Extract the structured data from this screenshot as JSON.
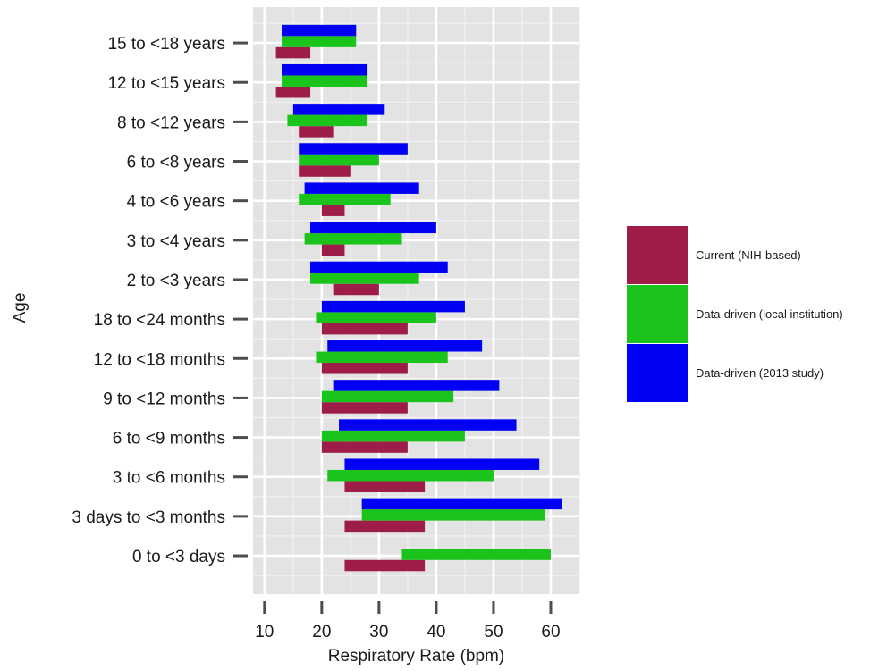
{
  "chart_data": {
    "type": "bar",
    "orientation": "horizontal",
    "bar_style": "floating-range",
    "xlabel": "Respiratory Rate (bpm)",
    "ylabel": "Age",
    "xlim": [
      8,
      65
    ],
    "xticks": [
      10,
      20,
      30,
      40,
      50,
      60
    ],
    "grid": true,
    "legend_position": "right",
    "categories": [
      "15 to <18 years",
      "12 to <15 years",
      "8 to <12 years",
      "6 to <8 years",
      "4 to <6 years",
      "3 to <4 years",
      "2 to <3 years",
      "18 to <24 months",
      "12 to <18 months",
      "9 to <12 months",
      "6 to <9 months",
      "3 to <6 months",
      "3 days to <3 months",
      "0 to <3 days"
    ],
    "series": [
      {
        "name": "Current (NIH-based)",
        "color": "#9e1c48",
        "ranges": [
          [
            12,
            18
          ],
          [
            12,
            18
          ],
          [
            16,
            22
          ],
          [
            16,
            25
          ],
          [
            20,
            24
          ],
          [
            20,
            24
          ],
          [
            22,
            30
          ],
          [
            20,
            35
          ],
          [
            20,
            35
          ],
          [
            20,
            35
          ],
          [
            20,
            35
          ],
          [
            24,
            38
          ],
          [
            24,
            38
          ],
          [
            24,
            38
          ]
        ]
      },
      {
        "name": "Data-driven (local institution)",
        "color": "#1ac41a",
        "ranges": [
          [
            13,
            26
          ],
          [
            13,
            28
          ],
          [
            14,
            28
          ],
          [
            16,
            30
          ],
          [
            16,
            32
          ],
          [
            17,
            34
          ],
          [
            18,
            37
          ],
          [
            19,
            40
          ],
          [
            19,
            42
          ],
          [
            20,
            43
          ],
          [
            20,
            45
          ],
          [
            21,
            50
          ],
          [
            27,
            59
          ],
          [
            34,
            60
          ]
        ]
      },
      {
        "name": "Data-driven (2013 study)",
        "color": "#0000f5",
        "ranges": [
          [
            13,
            26
          ],
          [
            13,
            28
          ],
          [
            15,
            31
          ],
          [
            16,
            35
          ],
          [
            17,
            37
          ],
          [
            18,
            40
          ],
          [
            18,
            42
          ],
          [
            20,
            45
          ],
          [
            21,
            48
          ],
          [
            22,
            51
          ],
          [
            23,
            54
          ],
          [
            24,
            58
          ],
          [
            27,
            62
          ],
          null
        ]
      }
    ]
  }
}
